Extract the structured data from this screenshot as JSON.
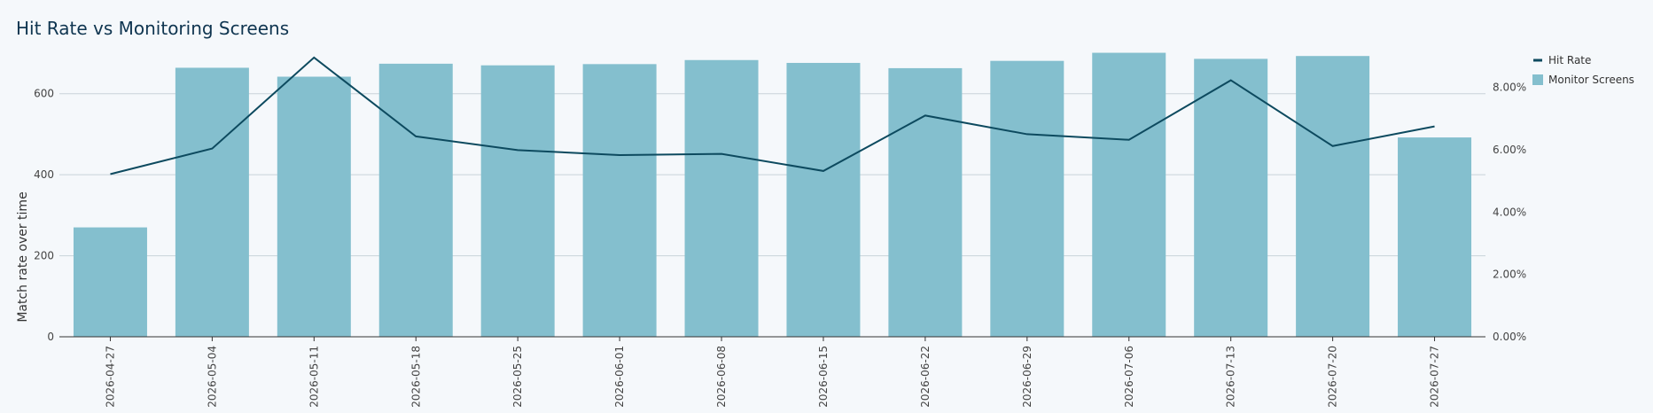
{
  "title": "Hit Rate vs Monitoring Screens",
  "chart_data": {
    "type": "bar",
    "title": "Hit Rate vs Monitoring Screens",
    "categories": [
      "2026-04-27",
      "2026-05-04",
      "2026-05-11",
      "2026-05-18",
      "2026-05-25",
      "2026-06-01",
      "2026-06-08",
      "2026-06-15",
      "2026-06-22",
      "2026-06-29",
      "2026-07-06",
      "2026-07-13",
      "2026-07-20",
      "2026-07-27"
    ],
    "series": [
      {
        "name": "Monitor Screens",
        "type": "bar",
        "axis": "left",
        "color": "#84bfce",
        "values": [
          270,
          664,
          642,
          674,
          670,
          673,
          683,
          676,
          663,
          681,
          701,
          686,
          693,
          492
        ]
      },
      {
        "name": "Hit Rate",
        "type": "line",
        "axis": "right",
        "color": "#0d4a5f",
        "values": [
          5.22,
          6.04,
          8.96,
          6.43,
          5.99,
          5.83,
          5.87,
          5.32,
          7.1,
          6.5,
          6.32,
          8.23,
          6.12,
          6.75
        ]
      }
    ],
    "ylabel": "Match rate over time",
    "ylim": [
      0,
      700
    ],
    "y_ticks": [
      0,
      200,
      400,
      600
    ],
    "y2lim": [
      0,
      9.1
    ],
    "y2_ticks": [
      "0.00%",
      "2.00%",
      "4.00%",
      "6.00%",
      "8.00%"
    ],
    "y2_tick_values": [
      0,
      2,
      4,
      6,
      8
    ],
    "grid": true,
    "legend_position": "top-right"
  }
}
